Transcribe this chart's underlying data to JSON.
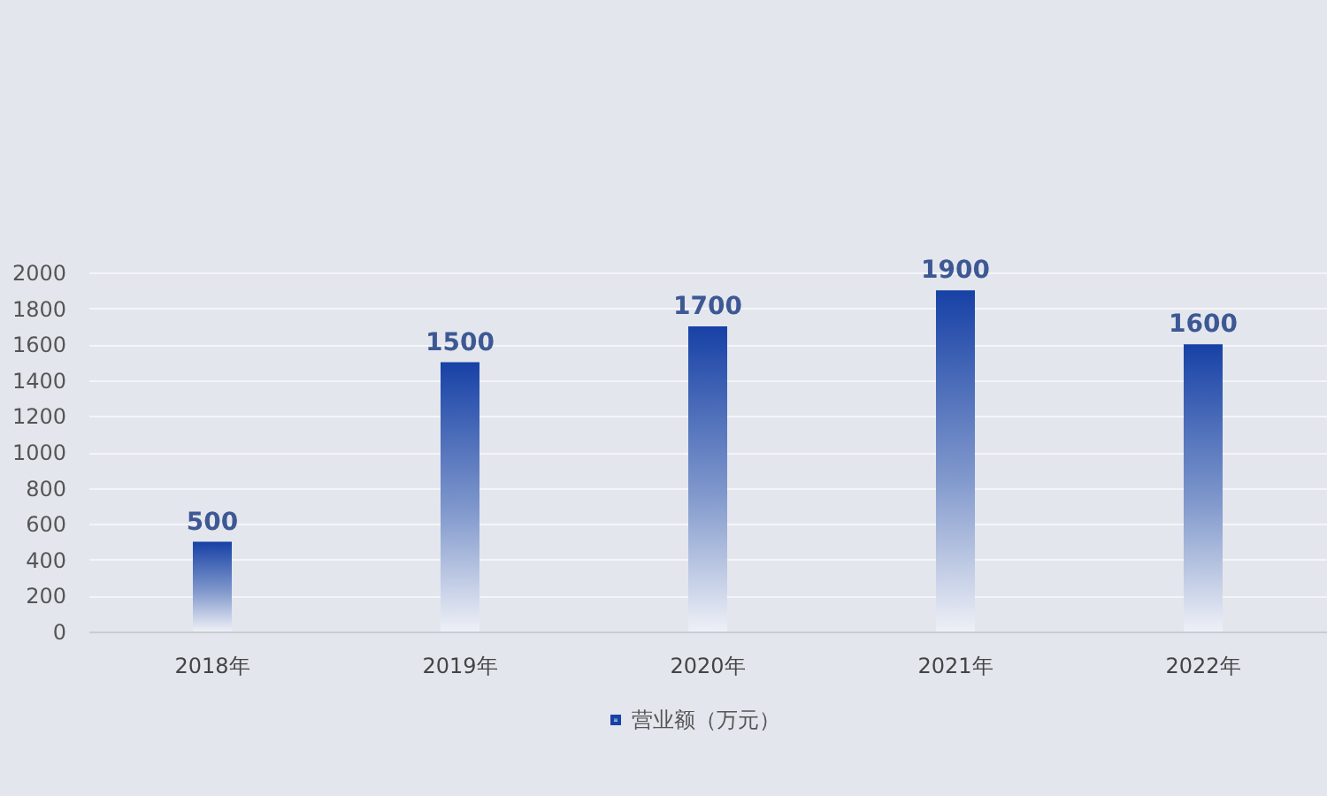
{
  "chart_data": {
    "type": "bar",
    "categories": [
      "2018年",
      "2019年",
      "2020年",
      "2021年",
      "2022年"
    ],
    "series": [
      {
        "name": "营业额（万元）",
        "color": "#1741a6",
        "values": [
          500,
          1500,
          1700,
          1900,
          1600
        ]
      }
    ],
    "ylim": [
      0,
      2000
    ],
    "yticks": [
      0,
      200,
      400,
      600,
      800,
      1000,
      1200,
      1400,
      1600,
      1800,
      2000
    ],
    "grid": "y",
    "legend": "bottom",
    "data_labels": true
  }
}
